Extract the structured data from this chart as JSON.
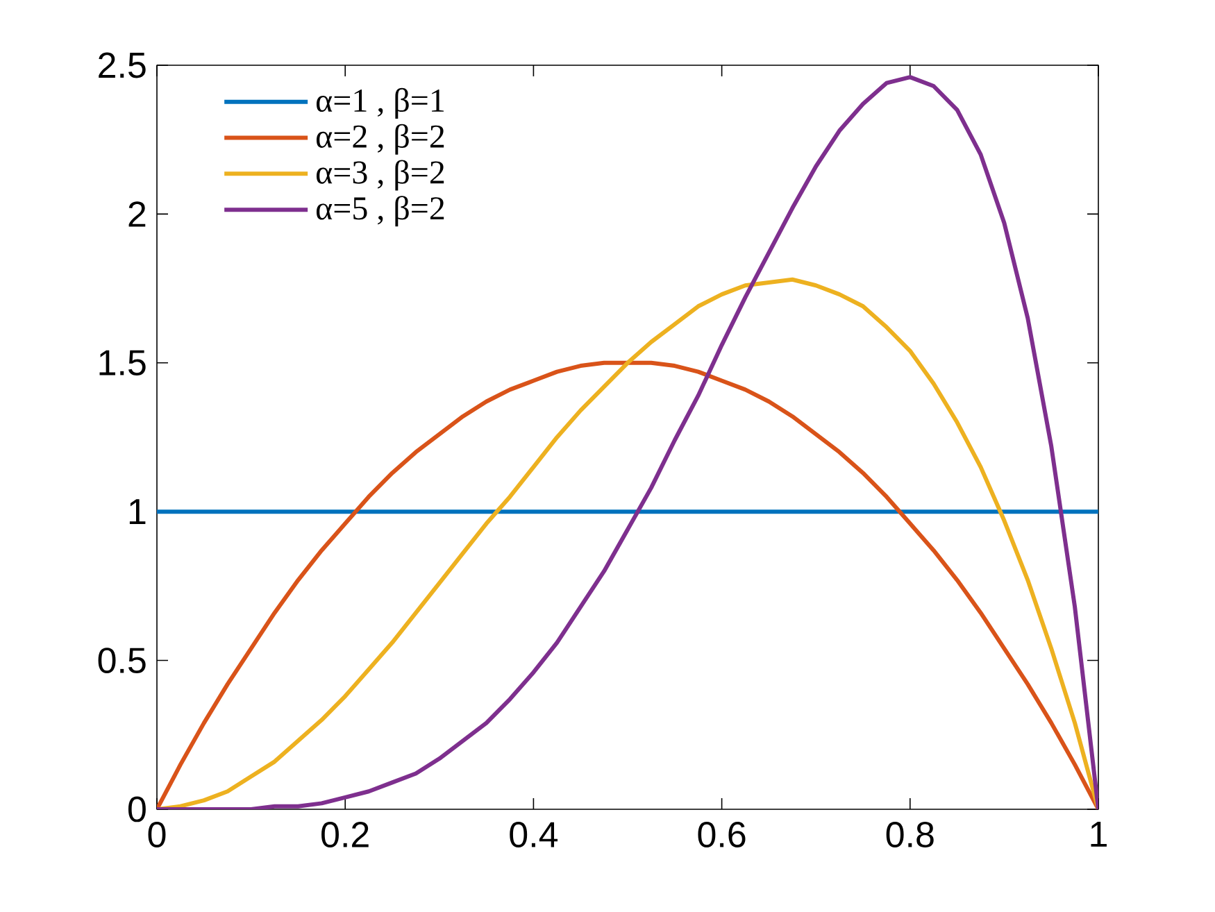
{
  "chart_data": {
    "type": "line",
    "x": [
      0,
      0.025,
      0.05,
      0.075,
      0.1,
      0.125,
      0.15,
      0.175,
      0.2,
      0.225,
      0.25,
      0.275,
      0.3,
      0.325,
      0.35,
      0.375,
      0.4,
      0.425,
      0.45,
      0.475,
      0.5,
      0.525,
      0.55,
      0.575,
      0.6,
      0.625,
      0.65,
      0.675,
      0.7,
      0.725,
      0.75,
      0.775,
      0.8,
      0.825,
      0.85,
      0.875,
      0.9,
      0.925,
      0.95,
      0.975,
      1
    ],
    "series": [
      {
        "name": "α=1 , β=1",
        "color": "#0072bd",
        "x": [
          0,
          1
        ],
        "values": [
          1,
          1
        ]
      },
      {
        "name": "α=2 , β=2",
        "color": "#d95319",
        "values": [
          0,
          0.15,
          0.29,
          0.42,
          0.54,
          0.66,
          0.77,
          0.87,
          0.96,
          1.05,
          1.13,
          1.2,
          1.26,
          1.32,
          1.37,
          1.41,
          1.44,
          1.47,
          1.49,
          1.5,
          1.5,
          1.5,
          1.49,
          1.47,
          1.44,
          1.41,
          1.37,
          1.32,
          1.26,
          1.2,
          1.13,
          1.05,
          0.96,
          0.87,
          0.77,
          0.66,
          0.54,
          0.42,
          0.29,
          0.15,
          0
        ]
      },
      {
        "name": "α=3 , β=2",
        "color": "#edb120",
        "values": [
          0,
          0.01,
          0.03,
          0.06,
          0.11,
          0.16,
          0.23,
          0.3,
          0.38,
          0.47,
          0.56,
          0.66,
          0.76,
          0.86,
          0.96,
          1.05,
          1.15,
          1.25,
          1.34,
          1.42,
          1.5,
          1.57,
          1.63,
          1.69,
          1.73,
          1.76,
          1.77,
          1.78,
          1.76,
          1.73,
          1.69,
          1.62,
          1.54,
          1.43,
          1.3,
          1.15,
          0.97,
          0.77,
          0.54,
          0.29,
          0
        ]
      },
      {
        "name": "α=5 , β=2",
        "color": "#7e2f8e",
        "values": [
          0,
          0,
          0,
          0,
          0,
          0.01,
          0.01,
          0.02,
          0.04,
          0.06,
          0.09,
          0.12,
          0.17,
          0.23,
          0.29,
          0.37,
          0.46,
          0.56,
          0.68,
          0.8,
          0.94,
          1.08,
          1.24,
          1.39,
          1.56,
          1.72,
          1.87,
          2.02,
          2.16,
          2.28,
          2.37,
          2.44,
          2.46,
          2.43,
          2.35,
          2.2,
          1.97,
          1.65,
          1.22,
          0.68,
          0
        ]
      }
    ],
    "xlim": [
      0,
      1
    ],
    "ylim": [
      0,
      2.5
    ],
    "xticks": [
      0,
      0.2,
      0.4,
      0.6,
      0.8,
      1
    ],
    "yticks": [
      0,
      0.5,
      1,
      1.5,
      2,
      2.5
    ],
    "grid": false,
    "legend": "top left",
    "marker": "none",
    "line_style": "solid"
  }
}
